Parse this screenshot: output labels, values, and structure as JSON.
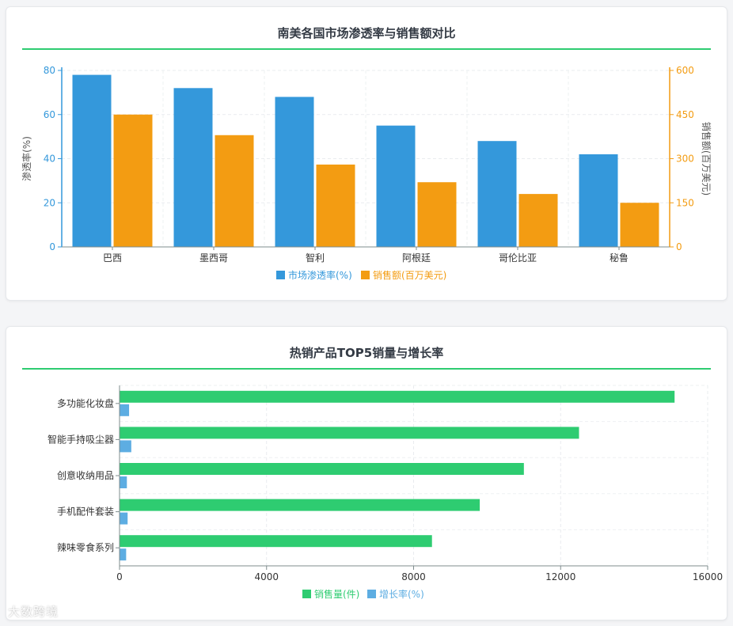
{
  "chart_data": [
    {
      "type": "bar",
      "title": "南美各国市场渗透率与销售额对比",
      "categories": [
        "巴西",
        "墨西哥",
        "智利",
        "阿根廷",
        "哥伦比亚",
        "秘鲁"
      ],
      "series": [
        {
          "name": "市场渗透率(%)",
          "axis": "left",
          "color": "#3498db",
          "values": [
            78,
            72,
            68,
            55,
            48,
            42
          ]
        },
        {
          "name": "销售额(百万美元)",
          "axis": "right",
          "color": "#f39c12",
          "values": [
            450,
            380,
            280,
            220,
            180,
            150
          ]
        }
      ],
      "ylabel": "渗透率(%)",
      "ylabel_right": "销售额(百万美元)",
      "ylim": [
        0,
        80
      ],
      "ylim_right": [
        0,
        600
      ],
      "yticks": [
        "0",
        "20",
        "40",
        "60",
        "80"
      ],
      "yticks_right": [
        "0",
        "150",
        "300",
        "450",
        "600"
      ],
      "left_axis_color": "#3498db",
      "right_axis_color": "#f39c12",
      "legend_position": "bottom",
      "grid": true
    },
    {
      "type": "bar",
      "orientation": "horizontal",
      "title": "热销产品TOP5销量与增长率",
      "categories": [
        "多功能化妆盘",
        "智能手持吸尘器",
        "创意收纳用品",
        "手机配件套装",
        "辣味零食系列"
      ],
      "series": [
        {
          "name": "销售量(件)",
          "color": "#2ecc71",
          "values": [
            15100,
            12500,
            11000,
            9800,
            8500
          ]
        },
        {
          "name": "增长率(%)",
          "color": "#5dade2",
          "values": [
            260,
            320,
            200,
            220,
            180
          ]
        }
      ],
      "xlim": [
        0,
        16000
      ],
      "xticks": [
        "0",
        "4000",
        "8000",
        "12000",
        "16000"
      ],
      "legend_position": "bottom",
      "grid": true
    }
  ],
  "watermark": "大数跨境"
}
